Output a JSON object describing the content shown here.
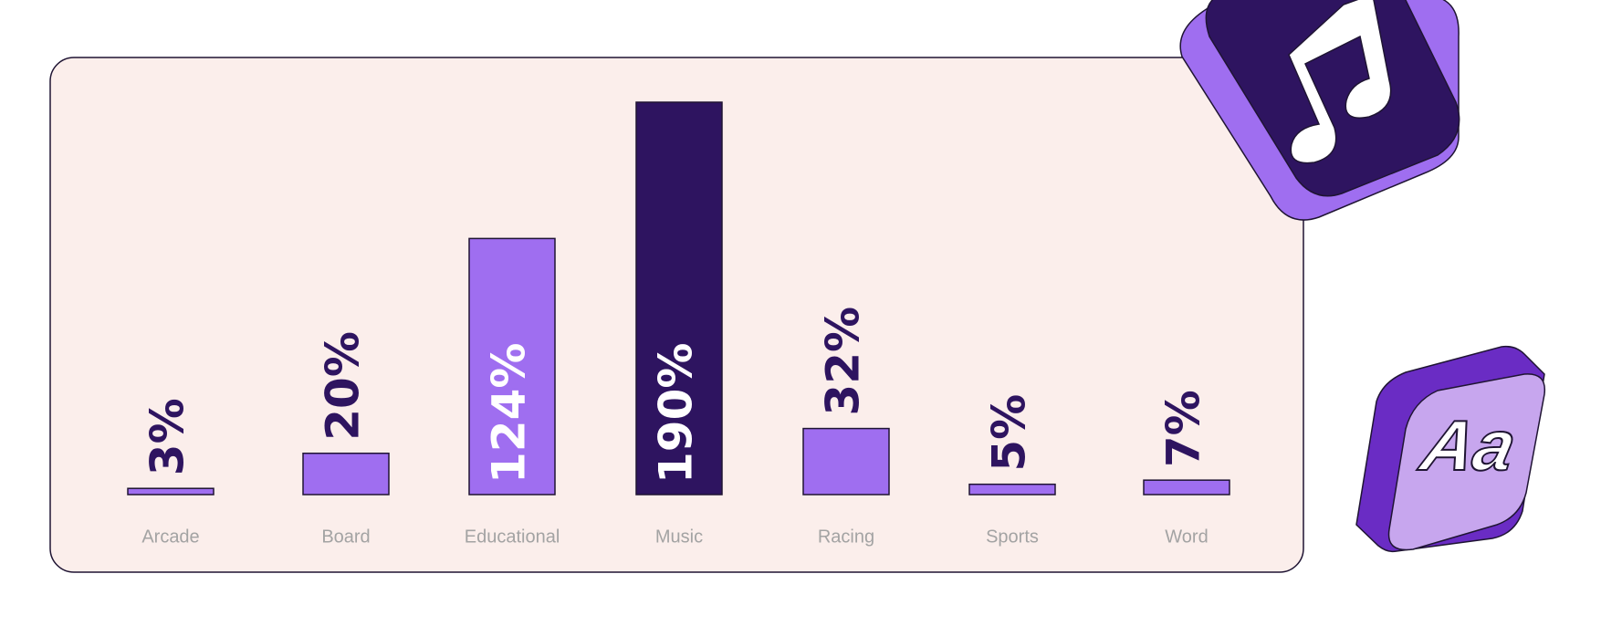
{
  "chart_data": {
    "type": "bar",
    "categories": [
      "Arcade",
      "Board",
      "Educational",
      "Music",
      "Racing",
      "Sports",
      "Word"
    ],
    "values": [
      3,
      20,
      124,
      190,
      32,
      5,
      7
    ],
    "value_labels": [
      "3%",
      "20%",
      "124%",
      "190%",
      "32%",
      "5%",
      "7%"
    ],
    "colors": [
      "#9f6ef0",
      "#9f6ef0",
      "#9f6ef0",
      "#2e1460",
      "#9f6ef0",
      "#9f6ef0",
      "#9f6ef0"
    ]
  },
  "icon_text": "Aa"
}
